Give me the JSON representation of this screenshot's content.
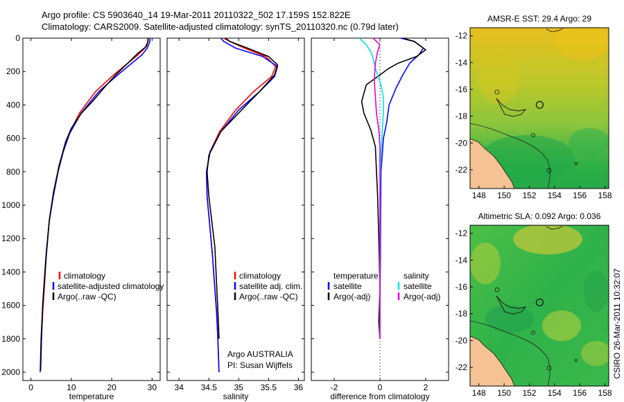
{
  "header": {
    "line1": "Argo profile: CS 5903640_14 19-Mar-2011 20110322_502 17.159S 152.822E",
    "line2": "Climatology: CARS2009. Satellite-adjusted climatology: synTS_20110320.nc (0.79d later)"
  },
  "side_label": "CSIRO 26-Mar-2011 10:32:07",
  "colors": {
    "red": "#ff0000",
    "blue": "#0000ff",
    "black": "#000000",
    "cyan": "#00e5e5",
    "magenta": "#e000e0",
    "land": "#f5c293",
    "coast": "#111111"
  },
  "chart_data": [
    {
      "id": "temperature",
      "type": "line",
      "xlabel": "temperature",
      "ylabel": "",
      "xlim": [
        -2,
        32
      ],
      "ylim": [
        2050,
        0
      ],
      "xticks": [
        0,
        10,
        20,
        30
      ],
      "yticks": [
        0,
        200,
        400,
        600,
        800,
        1000,
        1200,
        1400,
        1600,
        1800,
        2000
      ],
      "legend": [
        "climatology",
        "satellite-adjusted climatology",
        "Argo(..raw -QC)"
      ],
      "series": [
        {
          "name": "climatology",
          "color": "red",
          "x": [
            29.0,
            28.9,
            28.2,
            26.5,
            24.0,
            20.5,
            16.0,
            12.0,
            9.5,
            8.0,
            6.7,
            5.5,
            4.5,
            3.8,
            3.3,
            2.9,
            2.6,
            2.4
          ],
          "y": [
            0,
            25,
            60,
            100,
            150,
            220,
            320,
            450,
            570,
            680,
            800,
            950,
            1100,
            1300,
            1500,
            1650,
            1800,
            1950
          ]
        },
        {
          "name": "satellite-adjusted climatology",
          "color": "blue",
          "x": [
            29.5,
            29.4,
            28.8,
            27.5,
            25.0,
            21.5,
            16.8,
            12.4,
            9.6,
            8.0,
            6.7,
            5.5,
            4.5,
            3.8,
            3.2,
            2.8,
            2.5,
            2.3
          ],
          "y": [
            0,
            25,
            60,
            100,
            150,
            220,
            320,
            450,
            570,
            680,
            800,
            950,
            1100,
            1300,
            1500,
            1650,
            1800,
            2000
          ]
        },
        {
          "name": "Argo(..raw -QC)",
          "color": "black",
          "x": [
            29.0,
            29.0,
            28.6,
            26.5,
            24.0,
            21.0,
            18.0,
            15.2,
            12.5,
            10.0,
            8.6,
            7.0,
            5.6,
            4.6,
            3.8,
            3.3,
            2.9,
            2.6,
            2.4
          ],
          "y": [
            0,
            20,
            50,
            90,
            150,
            220,
            300,
            380,
            450,
            540,
            620,
            760,
            920,
            1080,
            1280,
            1450,
            1600,
            1800,
            1990
          ]
        }
      ]
    },
    {
      "id": "salinity",
      "type": "line",
      "xlabel": "salinity",
      "ylabel": "",
      "xlim": [
        33.8,
        36.1
      ],
      "ylim": [
        2050,
        0
      ],
      "xticks": [
        34,
        34.5,
        35,
        35.5,
        36
      ],
      "yticks": [
        0,
        200,
        400,
        600,
        800,
        1000,
        1200,
        1400,
        1600,
        1800,
        2000
      ],
      "legend": [
        "climatology",
        "satellite adj. clim.",
        "Argo(..raw -QC)"
      ],
      "annotation": [
        "Argo AUSTRALIA",
        "PI: Susan Wijffels"
      ],
      "series": [
        {
          "name": "climatology",
          "color": "red",
          "x": [
            34.75,
            34.85,
            35.1,
            35.45,
            35.62,
            35.55,
            35.25,
            34.95,
            34.68,
            34.52,
            34.46,
            34.47,
            34.51,
            34.56,
            34.6,
            34.63,
            34.65,
            34.67
          ],
          "y": [
            0,
            20,
            60,
            110,
            170,
            230,
            320,
            430,
            560,
            680,
            800,
            950,
            1100,
            1300,
            1500,
            1650,
            1800,
            2000
          ]
        },
        {
          "name": "satellite adj. clim.",
          "color": "blue",
          "x": [
            34.7,
            34.75,
            34.95,
            35.4,
            35.65,
            35.6,
            35.35,
            35.0,
            34.7,
            34.52,
            34.46,
            34.47,
            34.51,
            34.56,
            34.6,
            34.63,
            34.65,
            34.67
          ],
          "y": [
            0,
            20,
            60,
            110,
            170,
            230,
            320,
            430,
            560,
            680,
            800,
            950,
            1100,
            1300,
            1500,
            1650,
            1800,
            2000
          ]
        },
        {
          "name": "Argo(..raw -QC)",
          "color": "black",
          "x": [
            34.78,
            34.85,
            35.15,
            35.5,
            35.65,
            35.6,
            35.35,
            35.05,
            34.7,
            34.5,
            34.47,
            34.5,
            34.55,
            34.6,
            34.62,
            34.64,
            34.66,
            34.67
          ],
          "y": [
            0,
            20,
            60,
            110,
            160,
            220,
            320,
            430,
            560,
            700,
            800,
            950,
            1100,
            1250,
            1400,
            1550,
            1700,
            1800
          ]
        }
      ]
    },
    {
      "id": "difference",
      "type": "line",
      "xlabel": "difference from climatology",
      "ylabel": "",
      "xlim": [
        -3,
        3
      ],
      "ylim": [
        2050,
        0
      ],
      "xticks": [
        -2,
        0,
        2
      ],
      "yticks": [
        0,
        200,
        400,
        600,
        800,
        1000,
        1200,
        1400,
        1600,
        1800,
        2000
      ],
      "legend_temperature": [
        "temperature",
        "satellite",
        "Argo(-adj)"
      ],
      "legend_salinity": [
        "salinity",
        "satellite",
        "Argo(-adj)"
      ],
      "series": [
        {
          "name": "temperature satellite",
          "color": "blue",
          "x": [
            0.9,
            1.5,
            1.9,
            1.7,
            1.3,
            1.0,
            0.7,
            0.4,
            0.3,
            0.15,
            0.1,
            0.05,
            0.03,
            0.02,
            0.0,
            0.0
          ],
          "y": [
            0,
            20,
            60,
            100,
            150,
            220,
            300,
            400,
            500,
            600,
            700,
            800,
            1000,
            1300,
            1600,
            1800
          ]
        },
        {
          "name": "temperature Argo(-adj)",
          "color": "black",
          "x": [
            1.0,
            1.5,
            2.0,
            1.6,
            0.8,
            0.4,
            0.0,
            -0.6,
            -0.8,
            -0.7,
            -0.4,
            -0.2,
            -0.15,
            -0.1,
            -0.05,
            0.0,
            -0.05,
            0.0
          ],
          "y": [
            0,
            20,
            70,
            110,
            150,
            180,
            220,
            280,
            380,
            450,
            550,
            650,
            800,
            950,
            1200,
            1500,
            1700,
            1800
          ]
        },
        {
          "name": "salinity satellite",
          "color": "cyan",
          "x": [
            -0.9,
            -0.6,
            -0.4,
            -0.3,
            -0.2,
            0.0,
            0.15,
            0.15,
            0.1,
            0.05,
            0.02,
            0.0,
            0.0,
            0.0
          ],
          "y": [
            0,
            40,
            80,
            120,
            180,
            260,
            350,
            450,
            560,
            680,
            800,
            1000,
            1400,
            1800
          ]
        },
        {
          "name": "salinity Argo(-adj)",
          "color": "magenta",
          "x": [
            -0.3,
            0.0,
            -0.1,
            -0.2,
            -0.25,
            -0.2,
            -0.15,
            -0.05,
            0.0,
            0.0,
            0.0,
            0.0,
            0.0
          ],
          "y": [
            0,
            40,
            80,
            150,
            250,
            350,
            450,
            550,
            650,
            800,
            1000,
            1400,
            1800
          ]
        }
      ]
    },
    {
      "id": "sst_map",
      "type": "heatmap",
      "title": "AMSR-E SST: 29.4 Argo: 29",
      "xlim": [
        147.3,
        158.3
      ],
      "ylim": [
        -23.4,
        -11.4
      ],
      "xticks": [
        148,
        150,
        152,
        154,
        156,
        158
      ],
      "yticks": [
        -12,
        -14,
        -16,
        -18,
        -20,
        -22
      ],
      "profile_location": [
        152.822,
        -17.159
      ]
    },
    {
      "id": "sla_map",
      "type": "heatmap",
      "title": "Altimetric SLA: 0.092 Argo: 0.036",
      "xlim": [
        147.3,
        158.3
      ],
      "ylim": [
        -23.4,
        -11.4
      ],
      "xticks": [
        148,
        150,
        152,
        154,
        156,
        158
      ],
      "yticks": [
        -12,
        -14,
        -16,
        -18,
        -20,
        -22
      ],
      "profile_location": [
        152.822,
        -17.159
      ]
    }
  ]
}
